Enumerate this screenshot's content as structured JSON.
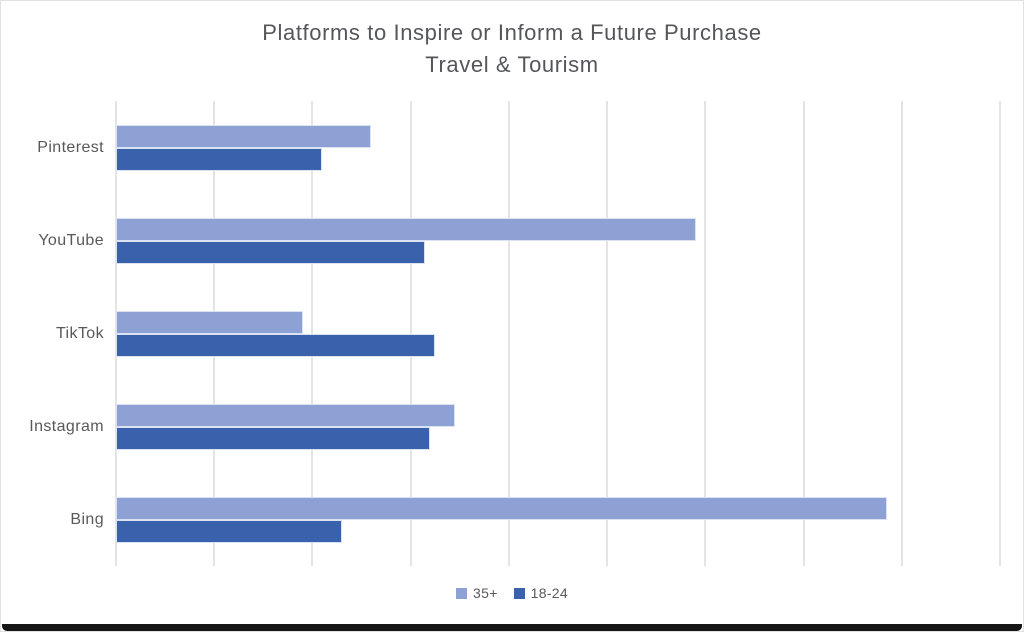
{
  "chart_data": {
    "type": "bar",
    "orientation": "horizontal",
    "title": "Platforms to Inspire or Inform a Future Purchase",
    "subtitle": "Travel & Tourism",
    "categories": [
      "Pinterest",
      "YouTube",
      "TikTok",
      "Instagram",
      "Bing"
    ],
    "series": [
      {
        "name": "35+",
        "color": "#8EA1D4",
        "values": [
          26,
          59,
          19,
          34.5,
          78.5
        ]
      },
      {
        "name": "18-24",
        "color": "#3A62AC",
        "values": [
          21,
          31.5,
          32.5,
          32,
          23
        ]
      }
    ],
    "xlim": [
      0,
      90
    ],
    "gridline_interval": 10,
    "grid": true,
    "legend_position": "bottom",
    "colors": {
      "gridline": "#e4e4e4",
      "title_text": "#55565a",
      "label_text": "#595959",
      "bar_border": "#dde2f3"
    }
  }
}
